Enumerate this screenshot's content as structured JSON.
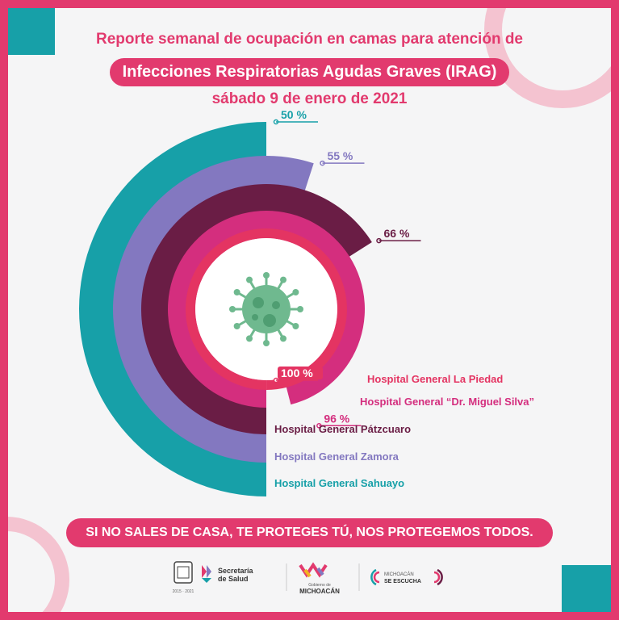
{
  "header": {
    "line1": "Reporte semanal de ocupación en camas para atención de",
    "line2": "Infecciones Respiratorias Agudas Graves (IRAG)",
    "date": "sábado 9 de enero de 2021"
  },
  "slogan": "SI NO SALES DE CASA, TE PROTEGES TÚ, NOS PROTEGEMOS TODOS.",
  "colors": {
    "brand_pink": "#e23a6e",
    "teal": "#17a0a8",
    "lavender": "#8378c0",
    "plum": "#6a1d45",
    "magenta": "#d42e7e",
    "coral": "#e43462"
  },
  "chart_data": {
    "type": "radial-bar",
    "title": "",
    "unit": "%",
    "series": [
      {
        "name": "Hospital General Sahuayo",
        "value": 50,
        "label": "50 %",
        "color": "#17a0a8"
      },
      {
        "name": "Hospital General Zamora",
        "value": 55,
        "label": "55 %",
        "color": "#8378c0"
      },
      {
        "name": "Hospital General Pátzcuaro",
        "value": 66,
        "label": "66 %",
        "color": "#6a1d45"
      },
      {
        "name": "Hospital General “Dr. Miguel Silva”",
        "value": 96,
        "label": "96 %",
        "color": "#d42e7e"
      },
      {
        "name": "Hospital General La Piedad",
        "value": 100,
        "label": "100 %",
        "color": "#e43462"
      }
    ],
    "center_icon": "virus-icon"
  },
  "logos": {
    "secretaria_line1": "Secretaría",
    "secretaria_line2": "de Salud",
    "gobierno_small": "Gobierno de",
    "gobierno_big": "MICHOACÁN",
    "escucha_line1": "MICHOACÁN",
    "escucha_line2": "SE ESCUCHA",
    "years": "2015 · 2021"
  }
}
